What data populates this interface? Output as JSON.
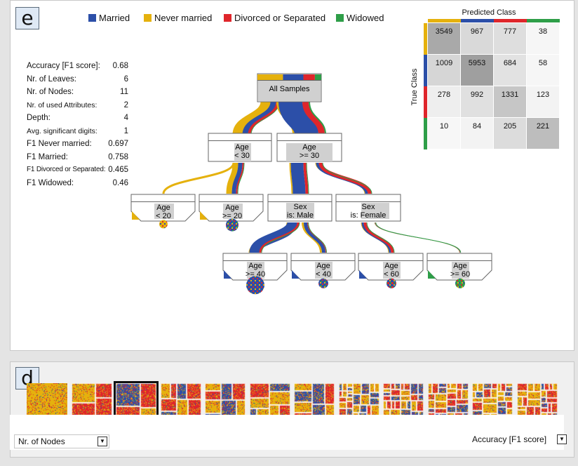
{
  "panel_e": {
    "tag": "e",
    "legend": [
      {
        "label": "Married",
        "color": "#2c4fa8"
      },
      {
        "label": "Never married",
        "color": "#e5b10d"
      },
      {
        "label": "Divorced or Separated",
        "color": "#df262b"
      },
      {
        "label": "Widowed",
        "color": "#2e9e48"
      }
    ],
    "stats": [
      {
        "label": "Accuracy [F1 score]:",
        "value": "0.68"
      },
      {
        "label": "Nr. of Leaves:",
        "value": "6"
      },
      {
        "label": "Nr. of Nodes:",
        "value": "11"
      },
      {
        "label": "Nr. of used Attributes:",
        "value": "2"
      },
      {
        "label": "Depth:",
        "value": "4"
      },
      {
        "label": "Avg. significant digits:",
        "value": "1"
      },
      {
        "label": "F1 Never married:",
        "value": "0.697"
      },
      {
        "label": "F1 Married:",
        "value": "0.758"
      },
      {
        "label": "F1 Divorced or Separated:",
        "value": "0.465"
      },
      {
        "label": "F1 Widowed:",
        "value": "0.46"
      }
    ],
    "confusion_matrix": {
      "title": "Predicted Class",
      "ylabel": "True Class",
      "class_colors": [
        "#e5b10d",
        "#2c4fa8",
        "#df262b",
        "#2e9e48"
      ],
      "values": [
        [
          3549,
          967,
          777,
          38
        ],
        [
          1009,
          5953,
          684,
          58
        ],
        [
          278,
          992,
          1331,
          123
        ],
        [
          10,
          84,
          205,
          221
        ]
      ],
      "shades": [
        [
          "#a9a9a9",
          "#d9d9d9",
          "#dedede",
          "#f6f6f6"
        ],
        [
          "#d6d6d6",
          "#9f9f9f",
          "#e2e2e2",
          "#f6f6f6"
        ],
        [
          "#eeeeee",
          "#e0e0e0",
          "#c6c6c6",
          "#f3f3f3"
        ],
        [
          "#f7f7f7",
          "#f3f3f3",
          "#dcdcdc",
          "#bdbdbd"
        ]
      ]
    },
    "tree": {
      "root": {
        "text": [
          "All Samples"
        ]
      },
      "nodes": [
        {
          "text": [
            "Age",
            "< 30"
          ],
          "dist": [
            0.27,
            0.55,
            0.12,
            0.06
          ]
        },
        {
          "text": [
            "Age",
            ">= 30"
          ],
          "dist": [
            0.62,
            0.05,
            0.17,
            0.16
          ]
        },
        {
          "text": [
            "Age",
            "< 20"
          ],
          "dist": [
            0,
            1,
            0,
            0
          ]
        },
        {
          "text": [
            "Age",
            ">= 20"
          ],
          "dist": [
            0.35,
            0.48,
            0.12,
            0.05
          ]
        },
        {
          "text": [
            "Sex",
            "is: Male"
          ],
          "dist": [
            0.72,
            0.05,
            0.18,
            0.05
          ]
        },
        {
          "text": [
            "Sex",
            "is: Female"
          ],
          "dist": [
            0.45,
            0.06,
            0.3,
            0.19
          ]
        },
        {
          "text": [
            "Age",
            ">= 40"
          ],
          "dist": [
            0.78,
            0.03,
            0.17,
            0.02
          ]
        },
        {
          "text": [
            "Age",
            "< 40"
          ],
          "dist": [
            0.6,
            0.3,
            0.1,
            0
          ]
        },
        {
          "text": [
            "Age",
            "< 60"
          ],
          "dist": [
            0.45,
            0.08,
            0.42,
            0.05
          ]
        },
        {
          "text": [
            "Age",
            ">= 60"
          ],
          "dist": [
            0.3,
            0.04,
            0.1,
            0.56
          ]
        }
      ]
    }
  },
  "panel_d": {
    "tag": "d",
    "thumbnail_count": 12,
    "selected_index": 2,
    "left_dropdown": "Nr. of Nodes",
    "right_dropdown": "Accuracy [F1 score]",
    "dropdown_arrow": "▼"
  }
}
